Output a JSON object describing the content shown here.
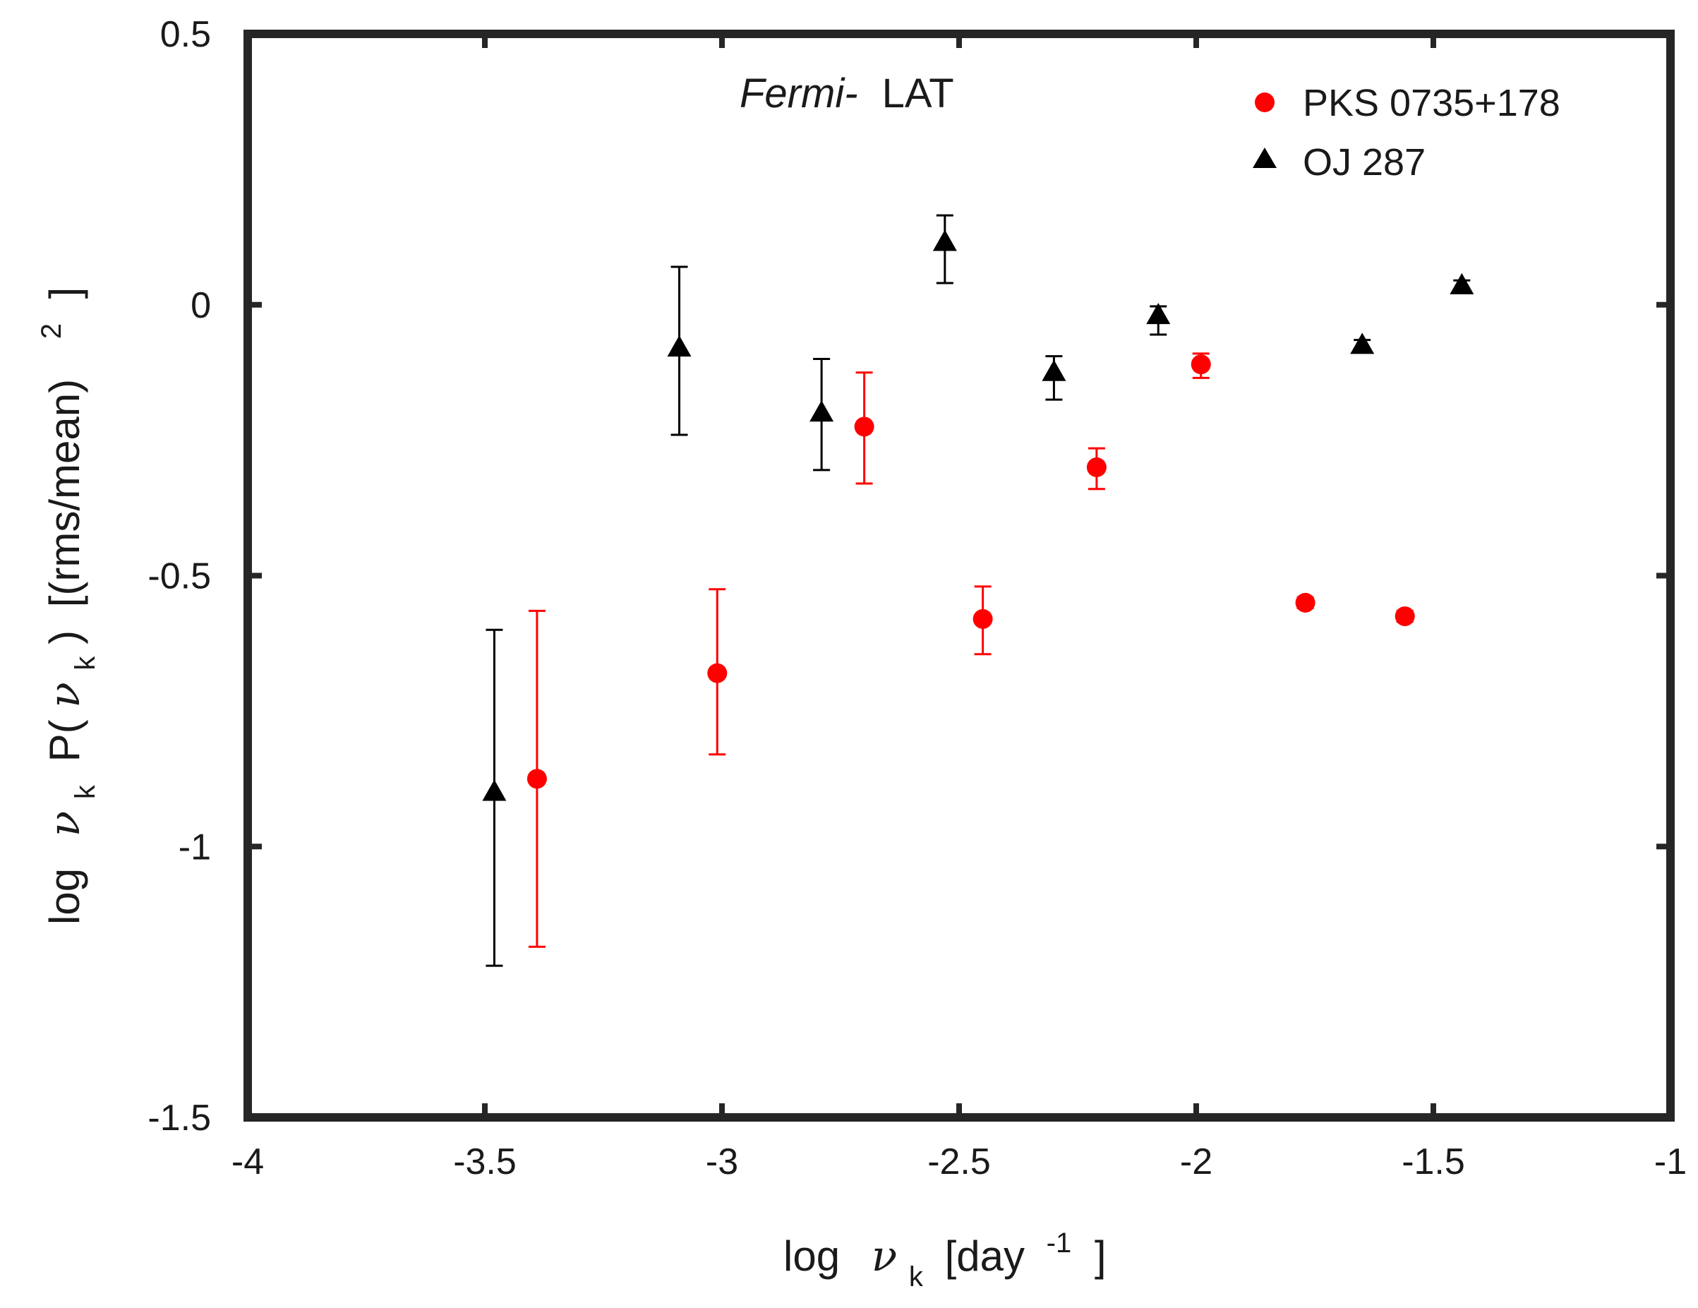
{
  "chart_data": {
    "type": "scatter",
    "title": {
      "italic_part": "Fermi-",
      "rest": "LAT"
    },
    "xlabel": {
      "prefix": "log",
      "symbol": "ν",
      "subscript": "k",
      "unit_open": "[day",
      "superscript": "-1",
      "unit_close": "]"
    },
    "ylabel": {
      "prefix": "log",
      "symbol": "ν",
      "subscript": "k",
      "power_open": "P(",
      "power_symbol": "ν",
      "power_subscript": "k",
      "power_close": ")",
      "unit": "[(rms/mean)",
      "superscript": "2",
      "unit_close": "]"
    },
    "xlim": [
      -4,
      -1
    ],
    "ylim": [
      -1.5,
      0.5
    ],
    "x_ticks": [
      -4,
      -3.5,
      -3,
      -2.5,
      -2,
      -1.5,
      -1
    ],
    "x_tick_labels": [
      "-4",
      "-3.5",
      "-3",
      "-2.5",
      "-2",
      "-1.5",
      "-1"
    ],
    "y_ticks": [
      -1.5,
      -1,
      -0.5,
      0,
      0.5
    ],
    "y_tick_labels": [
      "-1.5",
      "-1",
      "-0.5",
      "0",
      "0.5"
    ],
    "grid": false,
    "legend_position": "top-right",
    "series": [
      {
        "name": "PKS 0735+178",
        "marker": "circle",
        "color": "#ff0000",
        "points": [
          {
            "x": -3.39,
            "y": -0.875,
            "lo": -1.185,
            "hi": -0.565
          },
          {
            "x": -3.01,
            "y": -0.68,
            "lo": -0.83,
            "hi": -0.525
          },
          {
            "x": -2.7,
            "y": -0.225,
            "lo": -0.33,
            "hi": -0.125
          },
          {
            "x": -2.45,
            "y": -0.58,
            "lo": -0.645,
            "hi": -0.52
          },
          {
            "x": -2.21,
            "y": -0.3,
            "lo": -0.34,
            "hi": -0.265
          },
          {
            "x": -1.99,
            "y": -0.11,
            "lo": -0.135,
            "hi": -0.09
          },
          {
            "x": -1.77,
            "y": -0.55,
            "lo": -0.56,
            "hi": -0.54
          },
          {
            "x": -1.56,
            "y": -0.575,
            "lo": -0.585,
            "hi": -0.565
          }
        ]
      },
      {
        "name": "OJ 287",
        "marker": "triangle",
        "color": "#000000",
        "points": [
          {
            "x": -3.48,
            "y": -0.9,
            "lo": -1.22,
            "hi": -0.6
          },
          {
            "x": -3.09,
            "y": -0.08,
            "lo": -0.24,
            "hi": 0.07
          },
          {
            "x": -2.79,
            "y": -0.2,
            "lo": -0.305,
            "hi": -0.1
          },
          {
            "x": -2.53,
            "y": 0.115,
            "lo": 0.04,
            "hi": 0.165
          },
          {
            "x": -2.3,
            "y": -0.125,
            "lo": -0.175,
            "hi": -0.095
          },
          {
            "x": -2.08,
            "y": -0.02,
            "lo": -0.055,
            "hi": -0.003
          },
          {
            "x": -1.65,
            "y": -0.075,
            "lo": -0.085,
            "hi": -0.065
          },
          {
            "x": -1.44,
            "y": 0.035,
            "lo": 0.025,
            "hi": 0.045
          }
        ]
      }
    ]
  }
}
